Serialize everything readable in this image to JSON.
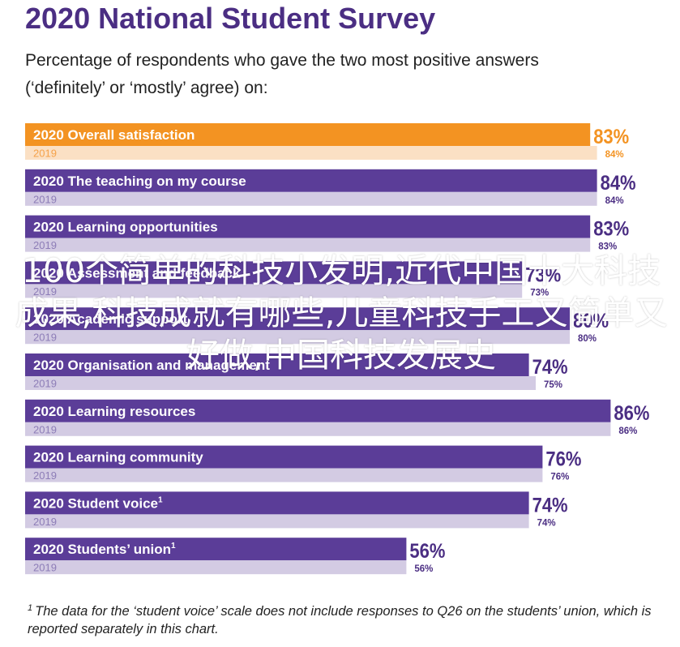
{
  "title": "2020 National Student Survey",
  "subtitle_line1": "Percentage of respondents who gave the two most positive answers",
  "subtitle_line2": "(‘definitely’ or ‘mostly’ agree) on:",
  "footnote": {
    "marker": "1",
    "text": "The data for the ‘student voice’ scale does not include responses to Q26 on the students’ union, which is reported separately in this chart."
  },
  "watermark": "100个简单的科技小发明,近代中国十大科技成果,科技成就有哪些,儿童科技手工又简单又好做,中国科技发展史",
  "colors": {
    "purple_2020": "#5b3d98",
    "purple_2019": "#d3cbe3",
    "orange_2020": "#f39322",
    "orange_2019": "#fbe0c4",
    "label_purple": "#4b2e83",
    "label_orange": "#f39322"
  },
  "chart_data": {
    "type": "bar",
    "orientation": "horizontal",
    "xlim": [
      0,
      100
    ],
    "series_years": [
      "2020",
      "2019"
    ],
    "categories": [
      {
        "name": "Overall satisfaction",
        "v2020": 83,
        "v2019": 84,
        "label2020": "83%",
        "label2019": "84%",
        "highlight": true
      },
      {
        "name": "The teaching on my course",
        "v2020": 84,
        "v2019": 84,
        "label2020": "84%",
        "label2019": "84%"
      },
      {
        "name": "Learning opportunities",
        "v2020": 83,
        "v2019": 83,
        "label2020": "83%",
        "label2019": "83%"
      },
      {
        "name": "Assessment and feedback",
        "v2020": 73,
        "v2019": 73,
        "label2020": "73%",
        "label2019": "73%"
      },
      {
        "name": "Academic support",
        "v2020": 80,
        "v2019": 80,
        "label2020": "80%",
        "label2019": "80%"
      },
      {
        "name": "Organisation and management",
        "v2020": 74,
        "v2019": 75,
        "label2020": "74%",
        "label2019": "75%"
      },
      {
        "name": "Learning resources",
        "v2020": 86,
        "v2019": 86,
        "label2020": "86%",
        "label2019": "86%"
      },
      {
        "name": "Learning community",
        "v2020": 76,
        "v2019": 76,
        "label2020": "76%",
        "label2019": "76%"
      },
      {
        "name": "Student voice",
        "sup": "1",
        "v2020": 74,
        "v2019": 74,
        "label2020": "74%",
        "label2019": "74%"
      },
      {
        "name": "Students’ union",
        "sup": "1",
        "v2020": 56,
        "v2019": 56,
        "label2020": "56%",
        "label2019": "56%"
      }
    ]
  }
}
